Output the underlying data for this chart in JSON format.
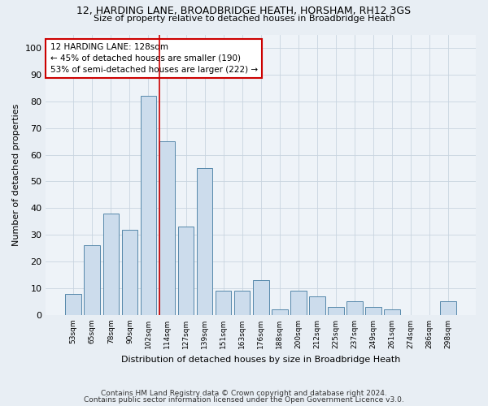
{
  "title1": "12, HARDING LANE, BROADBRIDGE HEATH, HORSHAM, RH12 3GS",
  "title2": "Size of property relative to detached houses in Broadbridge Heath",
  "xlabel": "Distribution of detached houses by size in Broadbridge Heath",
  "ylabel": "Number of detached properties",
  "categories": [
    "53sqm",
    "65sqm",
    "78sqm",
    "90sqm",
    "102sqm",
    "114sqm",
    "127sqm",
    "139sqm",
    "151sqm",
    "163sqm",
    "176sqm",
    "188sqm",
    "200sqm",
    "212sqm",
    "225sqm",
    "237sqm",
    "249sqm",
    "261sqm",
    "274sqm",
    "286sqm",
    "298sqm"
  ],
  "values": [
    8,
    26,
    38,
    32,
    82,
    65,
    33,
    55,
    9,
    9,
    13,
    2,
    9,
    7,
    3,
    5,
    3,
    2,
    0,
    0,
    5
  ],
  "bar_color": "#ccdcec",
  "bar_edge_color": "#5588aa",
  "annotation_text": "12 HARDING LANE: 128sqm\n← 45% of detached houses are smaller (190)\n53% of semi-detached houses are larger (222) →",
  "annotation_box_color": "#ffffff",
  "annotation_border_color": "#cc0000",
  "vline_index": 5,
  "vline_color": "#cc0000",
  "footnote1": "Contains HM Land Registry data © Crown copyright and database right 2024.",
  "footnote2": "Contains public sector information licensed under the Open Government Licence v3.0.",
  "ylim": [
    0,
    105
  ],
  "yticks": [
    0,
    10,
    20,
    30,
    40,
    50,
    60,
    70,
    80,
    90,
    100
  ],
  "bg_color": "#e8eef4",
  "plot_bg_color": "#eef3f8",
  "grid_color": "#c8d4e0"
}
